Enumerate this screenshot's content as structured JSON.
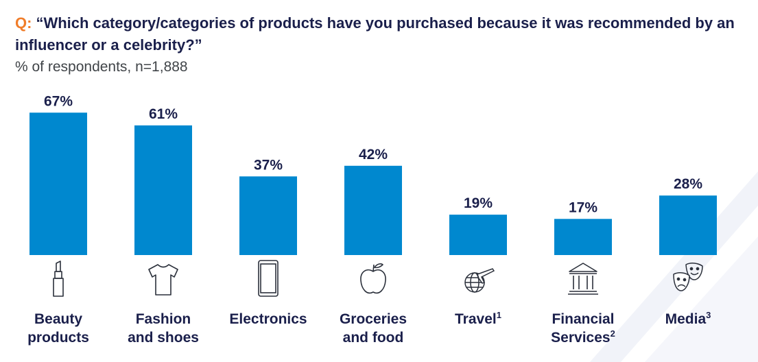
{
  "header": {
    "q_prefix": "Q:",
    "question": "“Which category/categories of products have you purchased because it was recommended by an influencer or a celebrity?”",
    "subtitle": "% of respondents, n=1,888"
  },
  "colors": {
    "bar": "#0088cf",
    "text_dark": "#1a1f4b",
    "accent": "#f07d2a",
    "icon_stroke": "#2a2f3a"
  },
  "chart_data": {
    "type": "bar",
    "title": "“Which category/categories of products have you purchased because it was recommended by an influencer or a celebrity?”",
    "subtitle": "% of respondents, n=1,888",
    "categories": [
      "Beauty products",
      "Fashion and shoes",
      "Electronics",
      "Groceries and food",
      "Travel",
      "Financial Services",
      "Media"
    ],
    "values": [
      67,
      61,
      37,
      42,
      19,
      17,
      28
    ],
    "value_labels": [
      "67%",
      "61%",
      "37%",
      "42%",
      "19%",
      "17%",
      "28%"
    ],
    "ylim": [
      0,
      100
    ],
    "grid": false,
    "legend": "none",
    "xlabel": "",
    "ylabel": ""
  },
  "categories": [
    {
      "line1": "Beauty",
      "line2": "products",
      "sup": "",
      "icon": "lipstick-icon"
    },
    {
      "line1": "Fashion",
      "line2": "and shoes",
      "sup": "",
      "icon": "tshirt-icon"
    },
    {
      "line1": "Electronics",
      "line2": "",
      "sup": "",
      "icon": "smartphone-icon"
    },
    {
      "line1": "Groceries",
      "line2": "and food",
      "sup": "",
      "icon": "apple-icon"
    },
    {
      "line1": "Travel",
      "line2": "",
      "sup": "1",
      "icon": "globe-plane-icon"
    },
    {
      "line1": "Financial",
      "line2": "Services",
      "sup": "2",
      "icon": "bank-icon"
    },
    {
      "line1": "Media",
      "line2": "",
      "sup": "3",
      "icon": "theater-masks-icon"
    }
  ]
}
